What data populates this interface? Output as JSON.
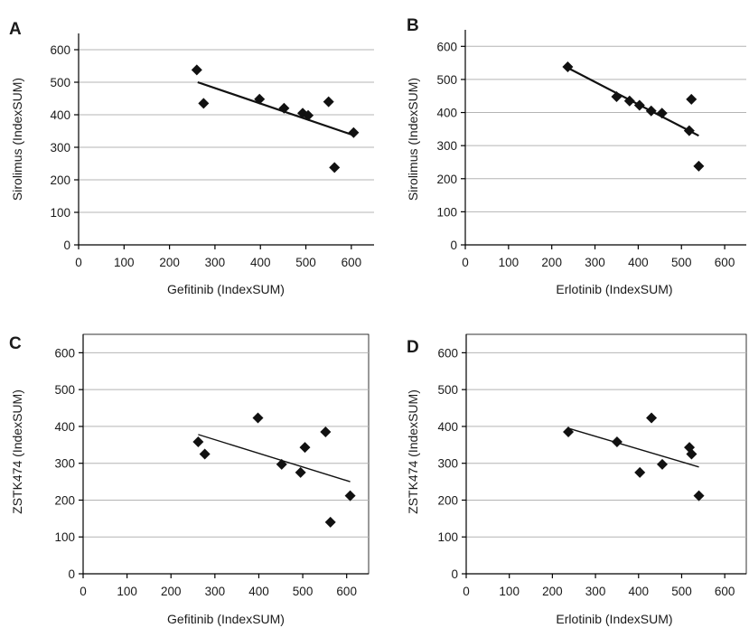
{
  "chart_data": [
    {
      "type": "scatter",
      "panel": "A",
      "xlabel": "Gefitinib (IndexSUM)",
      "ylabel": "Sirolimus (IndexSUM)",
      "xlim": [
        0,
        650
      ],
      "ylim": [
        0,
        650
      ],
      "xticks": [
        0,
        100,
        200,
        300,
        400,
        500,
        600
      ],
      "yticks": [
        0,
        100,
        200,
        300,
        400,
        500,
        600
      ],
      "grid": true,
      "frame": "bottom-left",
      "points": [
        {
          "x": 260,
          "y": 538
        },
        {
          "x": 275,
          "y": 435
        },
        {
          "x": 398,
          "y": 448
        },
        {
          "x": 452,
          "y": 420
        },
        {
          "x": 493,
          "y": 405
        },
        {
          "x": 505,
          "y": 398
        },
        {
          "x": 550,
          "y": 440
        },
        {
          "x": 563,
          "y": 238
        },
        {
          "x": 605,
          "y": 345
        }
      ],
      "trendline": {
        "x": [
          262,
          603
        ],
        "y": [
          500,
          338
        ]
      }
    },
    {
      "type": "scatter",
      "panel": "B",
      "xlabel": "Erlotinib (IndexSUM)",
      "ylabel": "Sirolimus (IndexSUM)",
      "xlim": [
        0,
        650
      ],
      "ylim": [
        0,
        650
      ],
      "xticks": [
        0,
        100,
        200,
        300,
        400,
        500,
        600
      ],
      "yticks": [
        0,
        100,
        200,
        300,
        400,
        500,
        600
      ],
      "grid": true,
      "frame": "bottom-left",
      "points": [
        {
          "x": 237,
          "y": 538
        },
        {
          "x": 350,
          "y": 448
        },
        {
          "x": 380,
          "y": 435
        },
        {
          "x": 403,
          "y": 422
        },
        {
          "x": 430,
          "y": 405
        },
        {
          "x": 455,
          "y": 398
        },
        {
          "x": 518,
          "y": 345
        },
        {
          "x": 523,
          "y": 440
        },
        {
          "x": 540,
          "y": 238
        }
      ],
      "trendline": {
        "x": [
          237,
          540
        ],
        "y": [
          535,
          330
        ]
      }
    },
    {
      "type": "scatter",
      "panel": "C",
      "xlabel": "Gefitinib (IndexSUM)",
      "ylabel": "ZSTK474 (IndexSUM)",
      "xlim": [
        0,
        650
      ],
      "ylim": [
        0,
        650
      ],
      "xticks": [
        0,
        100,
        200,
        300,
        400,
        500,
        600
      ],
      "yticks": [
        0,
        100,
        200,
        300,
        400,
        500,
        600
      ],
      "grid": true,
      "frame": "box",
      "points": [
        {
          "x": 262,
          "y": 358
        },
        {
          "x": 277,
          "y": 325
        },
        {
          "x": 398,
          "y": 423
        },
        {
          "x": 452,
          "y": 297
        },
        {
          "x": 495,
          "y": 275
        },
        {
          "x": 505,
          "y": 343
        },
        {
          "x": 552,
          "y": 385
        },
        {
          "x": 563,
          "y": 140
        },
        {
          "x": 608,
          "y": 212
        }
      ],
      "trendline": {
        "x": [
          262,
          608
        ],
        "y": [
          378,
          250
        ]
      }
    },
    {
      "type": "scatter",
      "panel": "D",
      "xlabel": "Erlotinib (IndexSUM)",
      "ylabel": "ZSTK474 (IndexSUM)",
      "xlim": [
        0,
        650
      ],
      "ylim": [
        0,
        650
      ],
      "xticks": [
        0,
        100,
        200,
        300,
        400,
        500,
        600
      ],
      "yticks": [
        0,
        100,
        200,
        300,
        400,
        500,
        600
      ],
      "grid": true,
      "frame": "box",
      "points": [
        {
          "x": 237,
          "y": 385
        },
        {
          "x": 350,
          "y": 358
        },
        {
          "x": 403,
          "y": 275
        },
        {
          "x": 430,
          "y": 423
        },
        {
          "x": 455,
          "y": 297
        },
        {
          "x": 518,
          "y": 343
        },
        {
          "x": 523,
          "y": 325
        },
        {
          "x": 540,
          "y": 212
        }
      ],
      "trendline": {
        "x": [
          237,
          540
        ],
        "y": [
          395,
          290
        ]
      }
    }
  ]
}
